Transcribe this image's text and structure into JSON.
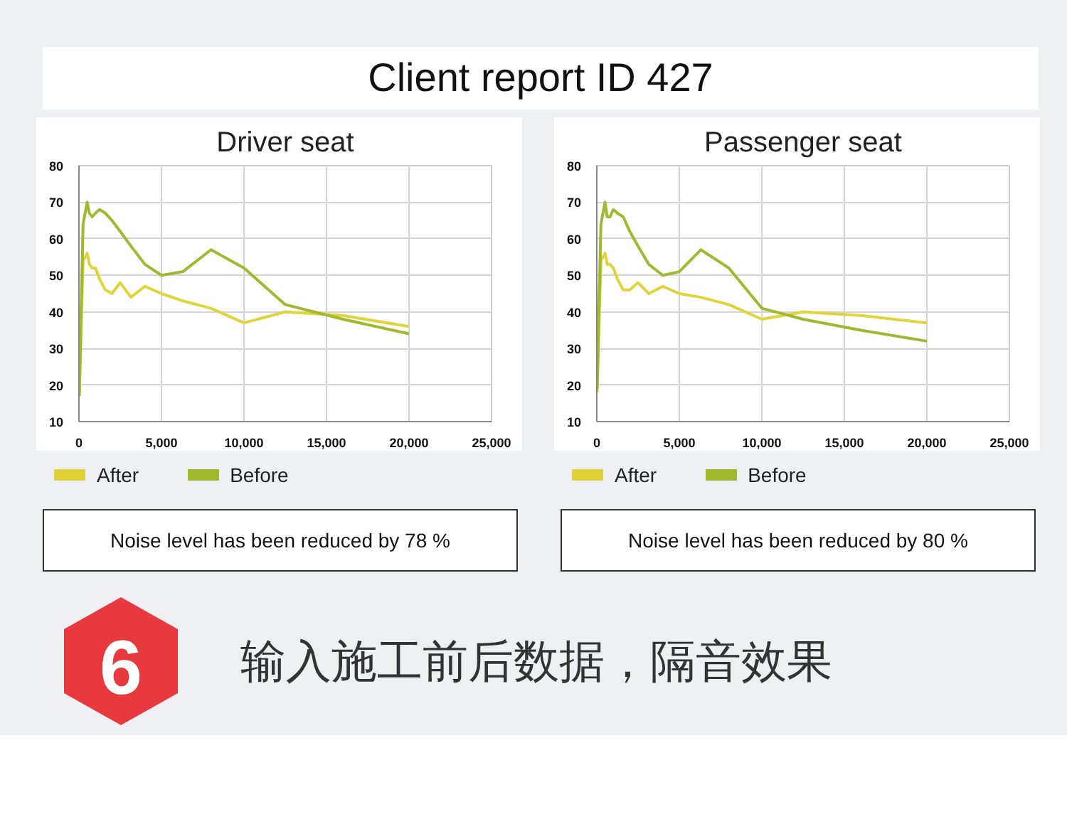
{
  "chart_data": [
    {
      "type": "line",
      "title": "Driver seat",
      "x": [
        20,
        250,
        500,
        630,
        800,
        1000,
        1250,
        1600,
        2000,
        2500,
        3150,
        4000,
        5000,
        6300,
        8000,
        10000,
        12500,
        16000,
        20000
      ],
      "series": [
        {
          "name": "After",
          "color": "#e0d43a",
          "values": [
            17,
            54,
            56,
            53,
            52,
            52,
            49,
            46,
            45,
            48,
            44,
            47,
            45,
            43,
            41,
            37,
            40,
            39,
            36
          ]
        },
        {
          "name": "Before",
          "color": "#a2b82e",
          "values": [
            17,
            64,
            70,
            67,
            66,
            67,
            68,
            67,
            65,
            62,
            58,
            53,
            50,
            51,
            57,
            52,
            42,
            38,
            34
          ]
        }
      ],
      "xlim": [
        0,
        25000
      ],
      "xticks": [
        0,
        {
          "value": 5000,
          "label": "5,000"
        },
        {
          "value": 10000,
          "label": "10,000"
        },
        {
          "value": 15000,
          "label": "15,000"
        },
        {
          "value": 20000,
          "label": "20,000"
        },
        {
          "value": 25000,
          "label": "25,000"
        }
      ],
      "ylim": [
        10,
        80
      ],
      "yticks": [
        10,
        20,
        30,
        40,
        50,
        60,
        70,
        80
      ],
      "grid": true,
      "legend": "bottom",
      "annotations": [
        "Noise level has been reduced by 78 %",
        "Client report ID 427",
        "6",
        "输入施工前后数据，隔音效果"
      ]
    },
    {
      "type": "line",
      "title": "Passenger seat",
      "x": [
        20,
        250,
        500,
        630,
        800,
        1000,
        1250,
        1600,
        2000,
        2500,
        3150,
        4000,
        5000,
        6300,
        8000,
        10000,
        12500,
        16000,
        20000
      ],
      "series": [
        {
          "name": "After",
          "color": "#e0d43a",
          "values": [
            18,
            54,
            56,
            53,
            53,
            52,
            49,
            46,
            46,
            48,
            45,
            47,
            45,
            44,
            42,
            38,
            40,
            39,
            37
          ]
        },
        {
          "name": "Before",
          "color": "#a2b82e",
          "values": [
            19,
            64,
            70,
            66,
            66,
            68,
            67,
            66,
            62,
            58,
            53,
            50,
            51,
            57,
            52,
            41,
            38,
            35,
            32
          ]
        }
      ],
      "xlim": [
        0,
        25000
      ],
      "xticks": [
        0,
        {
          "value": 5000,
          "label": "5,000"
        },
        {
          "value": 10000,
          "label": "10,000"
        },
        {
          "value": 15000,
          "label": "15,000"
        },
        {
          "value": 20000,
          "label": "20,000"
        },
        {
          "value": 25000,
          "label": "25,000"
        }
      ],
      "ylim": [
        10,
        80
      ],
      "yticks": [
        10,
        20,
        30,
        40,
        50,
        60,
        70,
        80
      ],
      "grid": true,
      "legend": "bottom",
      "annotations": [
        "Noise level has been reduced by 80 %"
      ]
    }
  ]
}
